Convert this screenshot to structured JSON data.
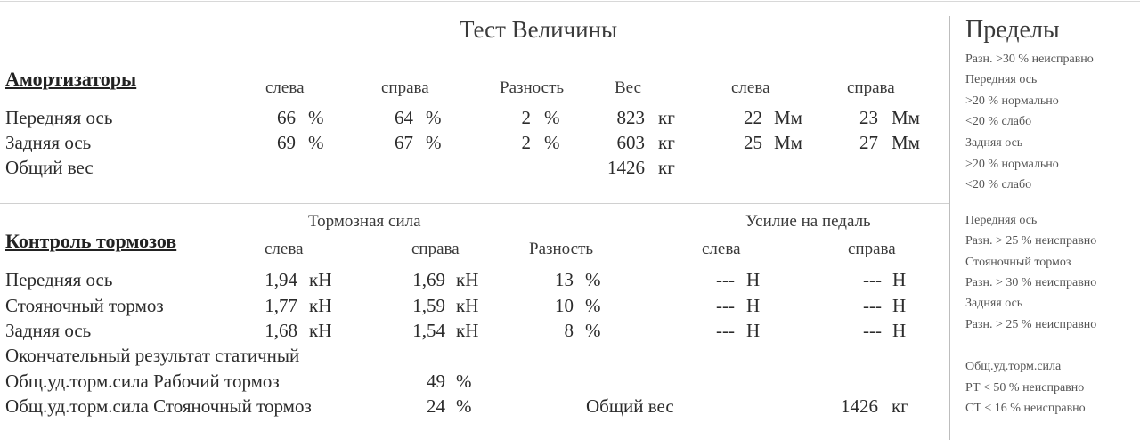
{
  "title": "Тест Величины",
  "limits": {
    "title": "Пределы",
    "items": [
      "Разн. >30 % неисправно",
      "Передняя ось",
      ">20 % нормально",
      "<20 % слабо",
      "Задняя ось",
      ">20 % нормально",
      "<20 % слабо",
      "Передняя ось",
      "Разн. > 25 % неисправно",
      "Стояночный тормоз",
      "Разн. > 30 % неисправно",
      "Задняя ось",
      "Разн. > 25 % неисправно",
      "Общ.уд.торм.сила",
      "РТ < 50 % неисправно",
      "СТ < 16 % неисправно"
    ]
  },
  "shocks": {
    "title": "Амортизаторы",
    "headers": [
      "слева",
      "справа",
      "Разность",
      "Вес",
      "слева",
      "справа"
    ],
    "rows": [
      {
        "label": "Передняя ось",
        "left": "66",
        "right": "64",
        "diff": "2",
        "weight": "823",
        "mm_left": "22",
        "mm_right": "23"
      },
      {
        "label": "Задняя ось",
        "left": "69",
        "right": "67",
        "diff": "2",
        "weight": "603",
        "mm_left": "25",
        "mm_right": "27"
      }
    ],
    "total_label": "Общий вес",
    "total_weight": "1426",
    "units": {
      "pct": "%",
      "kg": "кг",
      "mm": "Мм"
    }
  },
  "brakes": {
    "title": "Контроль тормозов",
    "group_force": "Тормозная сила",
    "group_pedal": "Усилие на педаль",
    "headers": [
      "слева",
      "справа",
      "Разность",
      "слева",
      "справа"
    ],
    "rows": [
      {
        "label": "Передняя ось",
        "left": "1,94",
        "right": "1,69",
        "diff": "13",
        "pedal_left": "---",
        "pedal_right": "---"
      },
      {
        "label": "Стояночный тормоз",
        "left": "1,77",
        "right": "1,59",
        "diff": "10",
        "pedal_left": "---",
        "pedal_right": "---"
      },
      {
        "label": "Задняя ось",
        "left": "1,68",
        "right": "1,54",
        "diff": "8",
        "pedal_left": "---",
        "pedal_right": "---"
      }
    ],
    "units": {
      "kn": "кН",
      "pct": "%",
      "n": "Н",
      "kg": "кг"
    },
    "final_label": "Окончательный результат статичный",
    "service_label": "Общ.уд.торм.сила Рабочий тормоз",
    "service_value": "49",
    "parking_label": "Общ.уд.торм.сила Стояночный тормоз",
    "parking_value": "24",
    "total_label": "Общий вес",
    "total_weight": "1426"
  }
}
